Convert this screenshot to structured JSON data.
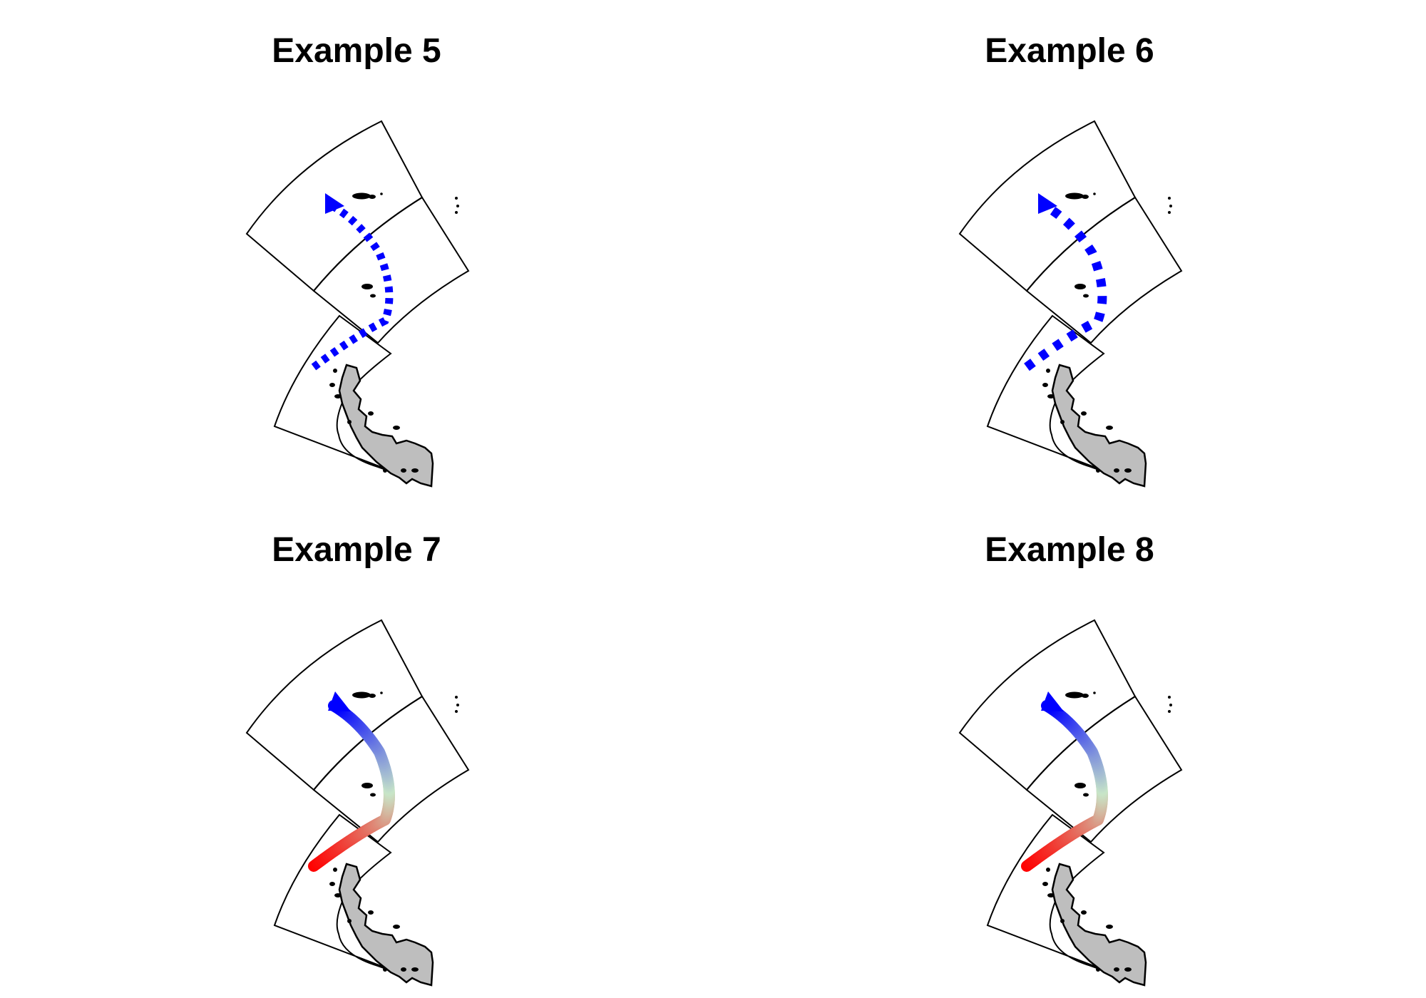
{
  "figure": {
    "panels": [
      {
        "title": "Example 5",
        "style": "dashed",
        "dash": "fine"
      },
      {
        "title": "Example 6",
        "style": "dashed",
        "dash": "coarse"
      },
      {
        "title": "Example 7",
        "style": "gradient"
      },
      {
        "title": "Example 8",
        "style": "gradient"
      }
    ],
    "colors": {
      "dashed_arrow": "#0000ff",
      "gradient_stops": [
        "#ff0000",
        "#c8e6c8",
        "#0000ff"
      ],
      "land_fill": "#bebebe",
      "outline": "#000000"
    }
  }
}
